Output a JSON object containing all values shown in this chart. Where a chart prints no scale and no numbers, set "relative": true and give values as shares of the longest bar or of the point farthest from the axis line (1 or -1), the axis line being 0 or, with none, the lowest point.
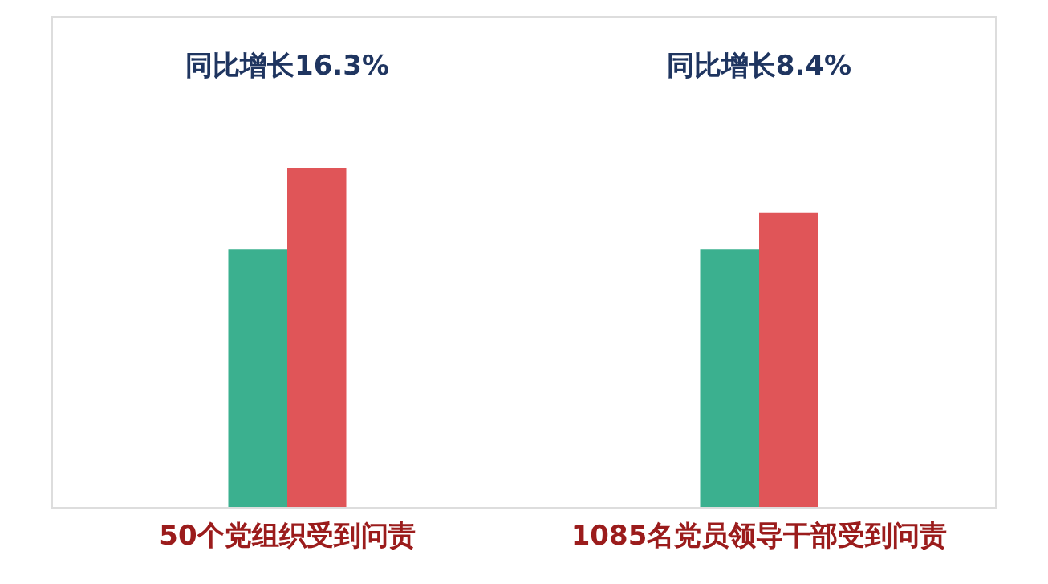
{
  "chart_data": {
    "type": "bar",
    "relative": true,
    "categories": [
      "50个党组织受到问责",
      "1085名党员领导干部受到问责"
    ],
    "series": [
      {
        "color": "#3bb08f",
        "values": [
          0.76,
          0.76
        ]
      },
      {
        "color": "#e05558",
        "values": [
          1,
          0.87
        ]
      }
    ],
    "annotations": [
      "同比增长16.3%",
      "同比增长8.4%"
    ],
    "legend": false,
    "grid": false
  }
}
